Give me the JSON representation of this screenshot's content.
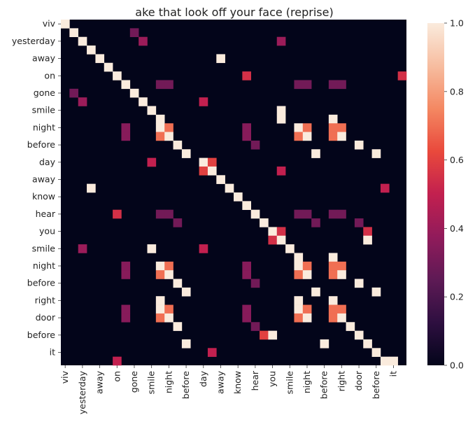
{
  "chart_data": {
    "type": "heatmap",
    "title": "ake that look off your face (reprise)",
    "labels": [
      "viv",
      "",
      "yesterday",
      "",
      "away",
      "",
      "on",
      "",
      "gone",
      "",
      "smile",
      "",
      "night",
      "",
      "before",
      "",
      "day",
      "",
      "away",
      "",
      "know",
      "",
      "hear",
      "",
      "you",
      "",
      "smile",
      "",
      "night",
      "",
      "before",
      "",
      "right",
      "",
      "door",
      "",
      "before",
      "",
      "it",
      ""
    ],
    "ytick_labels": [
      "viv",
      "yesterday",
      "away",
      "on",
      "gone",
      "smile",
      "night",
      "before",
      "day",
      "away",
      "know",
      "hear",
      "you",
      "smile",
      "night",
      "before",
      "right",
      "door",
      "before",
      "it"
    ],
    "xtick_labels": [
      "viv",
      "yesterday",
      "away",
      "on",
      "gone",
      "smile",
      "night",
      "before",
      "day",
      "away",
      "know",
      "hear",
      "you",
      "smile",
      "night",
      "before",
      "right",
      "door",
      "before",
      "it"
    ],
    "colorbar": {
      "min": 0.0,
      "max": 1.0,
      "ticks": [
        "0.0",
        "0.2",
        "0.4",
        "0.6",
        "0.8",
        "1.0"
      ]
    },
    "colormap": [
      "#03051a",
      "#2e0f40",
      "#5e1a55",
      "#911b5b",
      "#c2204f",
      "#e9493c",
      "#f48862",
      "#f7bda0",
      "#faebdd"
    ],
    "cells": [
      [
        0,
        0,
        1.0
      ],
      [
        1,
        1,
        1.0
      ],
      [
        1,
        8,
        0.3
      ],
      [
        2,
        2,
        1.0
      ],
      [
        2,
        9,
        0.4
      ],
      [
        2,
        25,
        0.4
      ],
      [
        3,
        3,
        1.0
      ],
      [
        4,
        4,
        1.0
      ],
      [
        4,
        18,
        1.0
      ],
      [
        5,
        5,
        1.0
      ],
      [
        6,
        6,
        1.0
      ],
      [
        6,
        21,
        0.55
      ],
      [
        6,
        39,
        0.55
      ],
      [
        7,
        7,
        1.0
      ],
      [
        7,
        11,
        0.3
      ],
      [
        7,
        12,
        0.3
      ],
      [
        7,
        27,
        0.3
      ],
      [
        7,
        28,
        0.3
      ],
      [
        7,
        31,
        0.3
      ],
      [
        7,
        32,
        0.3
      ],
      [
        8,
        1,
        0.3
      ],
      [
        8,
        8,
        1.0
      ],
      [
        9,
        2,
        0.4
      ],
      [
        9,
        9,
        1.0
      ],
      [
        9,
        16,
        0.5
      ],
      [
        10,
        10,
        1.0
      ],
      [
        10,
        25,
        1.0
      ],
      [
        11,
        11,
        1.0
      ],
      [
        11,
        25,
        1.0
      ],
      [
        11,
        31,
        1.0
      ],
      [
        12,
        7,
        0.35
      ],
      [
        12,
        11,
        1.0
      ],
      [
        12,
        12,
        0.7
      ],
      [
        12,
        21,
        0.35
      ],
      [
        12,
        27,
        1.0
      ],
      [
        12,
        28,
        0.7
      ],
      [
        12,
        31,
        0.7
      ],
      [
        12,
        32,
        0.7
      ],
      [
        13,
        7,
        0.35
      ],
      [
        13,
        11,
        0.7
      ],
      [
        13,
        12,
        1.0
      ],
      [
        13,
        21,
        0.35
      ],
      [
        13,
        27,
        0.7
      ],
      [
        13,
        28,
        1.0
      ],
      [
        13,
        31,
        0.7
      ],
      [
        13,
        32,
        1.0
      ],
      [
        14,
        13,
        1.0
      ],
      [
        14,
        22,
        0.3
      ],
      [
        14,
        34,
        1.0
      ],
      [
        15,
        14,
        1.0
      ],
      [
        15,
        29,
        1.0
      ],
      [
        15,
        36,
        1.0
      ],
      [
        16,
        10,
        0.5
      ],
      [
        16,
        16,
        1.0
      ],
      [
        16,
        17,
        0.6
      ],
      [
        17,
        16,
        0.6
      ],
      [
        17,
        17,
        1.0
      ],
      [
        17,
        25,
        0.5
      ],
      [
        18,
        18,
        1.0
      ],
      [
        19,
        3,
        1.0
      ],
      [
        19,
        19,
        1.0
      ],
      [
        19,
        37,
        0.5
      ],
      [
        20,
        20,
        1.0
      ],
      [
        21,
        21,
        1.0
      ],
      [
        22,
        6,
        0.55
      ],
      [
        22,
        11,
        0.3
      ],
      [
        22,
        12,
        0.3
      ],
      [
        22,
        22,
        1.0
      ],
      [
        22,
        27,
        0.3
      ],
      [
        22,
        28,
        0.3
      ],
      [
        22,
        31,
        0.3
      ],
      [
        22,
        32,
        0.3
      ],
      [
        23,
        13,
        0.3
      ],
      [
        23,
        23,
        1.0
      ],
      [
        23,
        29,
        0.3
      ],
      [
        23,
        34,
        0.3
      ],
      [
        24,
        24,
        1.0
      ],
      [
        24,
        25,
        0.55
      ],
      [
        24,
        35,
        0.55
      ],
      [
        25,
        24,
        0.55
      ],
      [
        25,
        25,
        1.0
      ],
      [
        25,
        35,
        1.0
      ],
      [
        26,
        2,
        0.4
      ],
      [
        26,
        10,
        1.0
      ],
      [
        26,
        16,
        0.5
      ],
      [
        26,
        26,
        1.0
      ],
      [
        27,
        27,
        1.0
      ],
      [
        27,
        31,
        1.0
      ],
      [
        28,
        7,
        0.35
      ],
      [
        28,
        11,
        1.0
      ],
      [
        28,
        12,
        0.7
      ],
      [
        28,
        21,
        0.35
      ],
      [
        28,
        27,
        1.0
      ],
      [
        28,
        28,
        0.7
      ],
      [
        28,
        31,
        0.7
      ],
      [
        28,
        32,
        0.7
      ],
      [
        29,
        7,
        0.35
      ],
      [
        29,
        11,
        0.7
      ],
      [
        29,
        12,
        1.0
      ],
      [
        29,
        21,
        0.35
      ],
      [
        29,
        27,
        0.7
      ],
      [
        29,
        28,
        1.0
      ],
      [
        29,
        31,
        0.7
      ],
      [
        29,
        32,
        1.0
      ],
      [
        30,
        13,
        1.0
      ],
      [
        30,
        22,
        0.3
      ],
      [
        30,
        34,
        1.0
      ],
      [
        31,
        14,
        1.0
      ],
      [
        31,
        29,
        1.0
      ],
      [
        31,
        36,
        1.0
      ],
      [
        32,
        11,
        1.0
      ],
      [
        32,
        27,
        1.0
      ],
      [
        32,
        31,
        1.0
      ],
      [
        33,
        7,
        0.35
      ],
      [
        33,
        11,
        1.0
      ],
      [
        33,
        12,
        0.7
      ],
      [
        33,
        21,
        0.35
      ],
      [
        33,
        27,
        1.0
      ],
      [
        33,
        28,
        0.7
      ],
      [
        33,
        31,
        0.7
      ],
      [
        33,
        32,
        0.7
      ],
      [
        34,
        7,
        0.35
      ],
      [
        34,
        11,
        0.7
      ],
      [
        34,
        12,
        1.0
      ],
      [
        34,
        21,
        0.35
      ],
      [
        34,
        27,
        0.7
      ],
      [
        34,
        28,
        1.0
      ],
      [
        34,
        31,
        0.7
      ],
      [
        34,
        32,
        1.0
      ],
      [
        35,
        13,
        1.0
      ],
      [
        35,
        22,
        0.3
      ],
      [
        35,
        33,
        1.0
      ],
      [
        36,
        23,
        0.6
      ],
      [
        36,
        24,
        1.0
      ],
      [
        36,
        34,
        1.0
      ],
      [
        37,
        14,
        1.0
      ],
      [
        37,
        30,
        1.0
      ],
      [
        37,
        35,
        1.0
      ],
      [
        38,
        17,
        0.5
      ],
      [
        38,
        36,
        1.0
      ],
      [
        39,
        6,
        0.5
      ],
      [
        39,
        37,
        1.0
      ],
      [
        39,
        38,
        1.0
      ]
    ]
  }
}
